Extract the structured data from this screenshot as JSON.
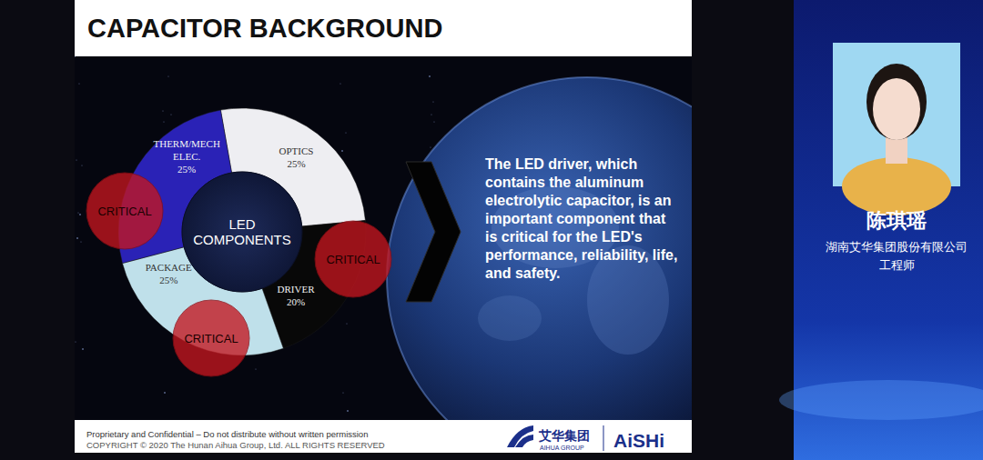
{
  "slide": {
    "title": "CAPACITOR BACKGROUND",
    "body": "The LED driver, which contains the aluminum electrolytic capacitor, is an important component that is critical for the LED's performance, reliability, life, and safety.",
    "footer": [
      "Proprietary and Confidential – Do not distribute without written permission",
      "COPYRIGHT © 2020 The Hunan Aihua Group, Ltd.  ALL RIGHTS RESERVED"
    ],
    "logo": {
      "chinese": "艾华集团",
      "english": "AIHUA GROUP",
      "brand": "AiSHi"
    }
  },
  "chart_data": {
    "type": "donut",
    "title": "LED COMPONENTS",
    "categories": [
      "OPTICS",
      "DRIVER",
      "PACKAGE",
      "THERM/MECH ELEC."
    ],
    "values": [
      25,
      20,
      25,
      25
    ],
    "value_labels": [
      "25%",
      "20%",
      "25%",
      "25%"
    ],
    "colors": [
      "#eeeef2",
      "#080808",
      "#bfe0ea",
      "#2a22b6"
    ],
    "data_labels": true,
    "annotations": [
      "CRITICAL",
      "CRITICAL",
      "CRITICAL"
    ]
  },
  "speaker": {
    "name": "陈琪瑶",
    "company": "湖南艾华集团股份有限公司",
    "role": "工程师"
  }
}
